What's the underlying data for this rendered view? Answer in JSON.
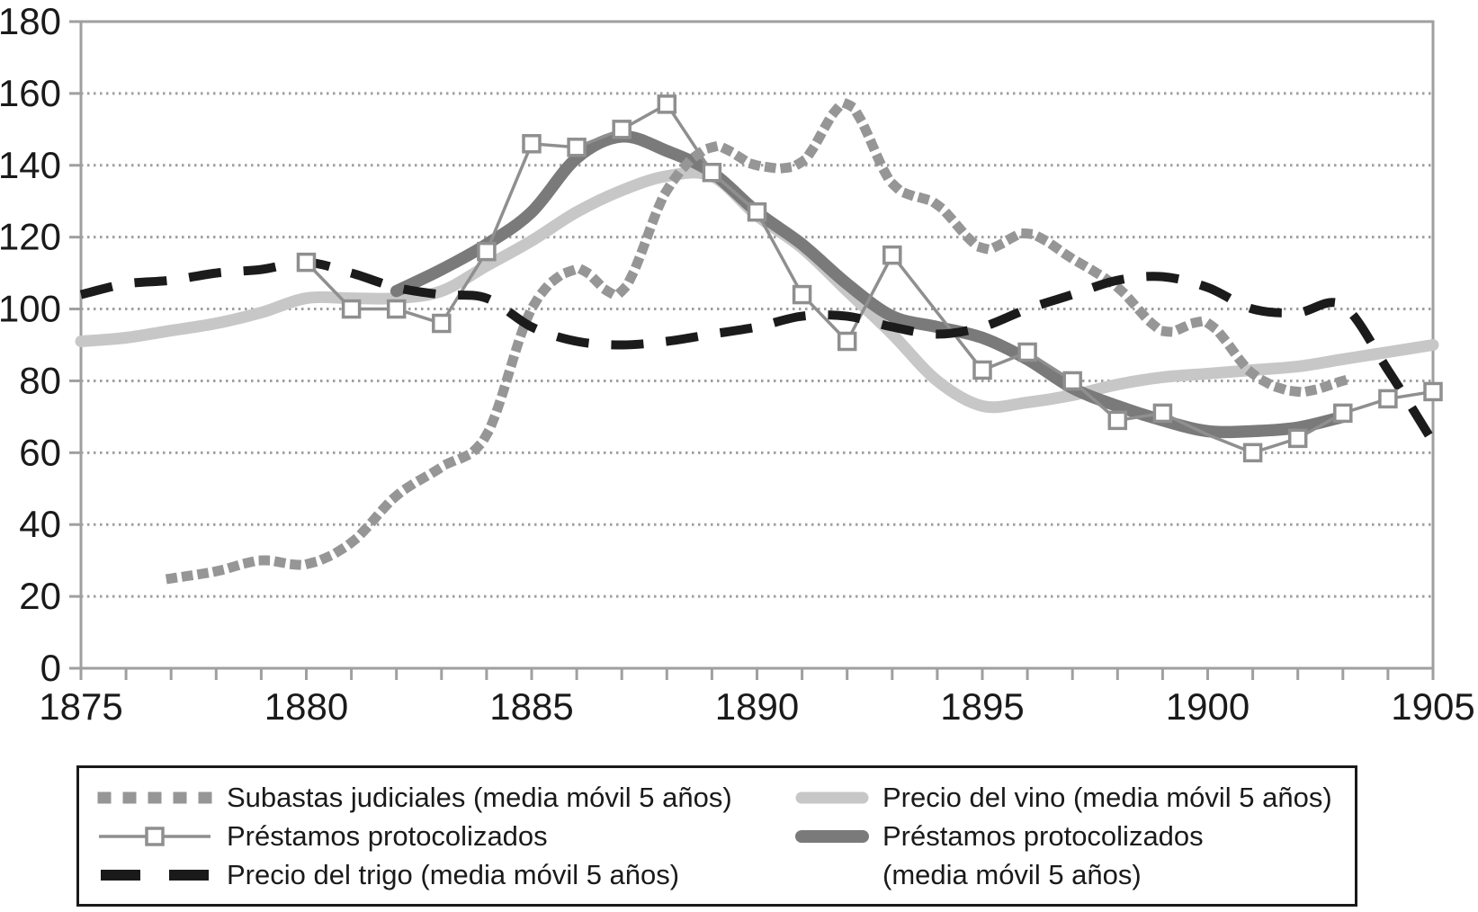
{
  "legend": {
    "left": [
      "Subastas judiciales (media móvil 5 años)",
      "Préstamos protocolizados",
      "Precio del trigo (media móvil 5 años)"
    ],
    "right": [
      "Precio del vino (media móvil 5 años)",
      "Préstamos protocolizados",
      "(media móvil 5 años)"
    ]
  },
  "chart_data": {
    "type": "line",
    "title": "",
    "xlabel": "",
    "ylabel": "",
    "grid": "horizontal-dotted",
    "legend_position": "bottom-box",
    "style": {
      "axis_color": "#9f9f9f",
      "grid_color": "#9f9f9f",
      "text_color": "#1a1a1a",
      "background": "#ffffff"
    },
    "x_axis": {
      "min": 1875,
      "max": 1905,
      "tick_step": 1,
      "label_step": 5,
      "labels": [
        "1875",
        "1880",
        "1885",
        "1890",
        "1895",
        "1900",
        "1905"
      ]
    },
    "y_axis": {
      "min": 0,
      "max": 180,
      "tick_step": 20,
      "labels": [
        "0",
        "20",
        "40",
        "60",
        "80",
        "100",
        "120",
        "140",
        "160",
        "180"
      ]
    },
    "series": [
      {
        "id": "vino_mm",
        "name": "Precio del vino (media móvil 5 años)",
        "color": "#c7c7c7",
        "line": "solid",
        "width": 13,
        "smooth": true,
        "markers": false,
        "points": [
          [
            1875,
            91
          ],
          [
            1876,
            92
          ],
          [
            1877,
            94
          ],
          [
            1878,
            96
          ],
          [
            1879,
            99
          ],
          [
            1880,
            103
          ],
          [
            1881,
            103
          ],
          [
            1882,
            103
          ],
          [
            1883,
            105
          ],
          [
            1884,
            112
          ],
          [
            1885,
            119
          ],
          [
            1886,
            127
          ],
          [
            1887,
            133
          ],
          [
            1888,
            137
          ],
          [
            1889,
            137
          ],
          [
            1890,
            126
          ],
          [
            1891,
            117
          ],
          [
            1892,
            105
          ],
          [
            1893,
            93
          ],
          [
            1894,
            80
          ],
          [
            1895,
            73
          ],
          [
            1896,
            74
          ],
          [
            1897,
            76
          ],
          [
            1898,
            79
          ],
          [
            1899,
            81
          ],
          [
            1900,
            82
          ],
          [
            1901,
            83
          ],
          [
            1902,
            84
          ],
          [
            1903,
            86
          ],
          [
            1904,
            88
          ],
          [
            1905,
            90
          ]
        ]
      },
      {
        "id": "prestamos_mm",
        "name": "Préstamos protocolizados (media móvil 5 años)",
        "color": "#7a7a7a",
        "line": "solid",
        "width": 13.5,
        "smooth": true,
        "markers": false,
        "points": [
          [
            1882,
            105
          ],
          [
            1883,
            111
          ],
          [
            1884,
            118
          ],
          [
            1885,
            127
          ],
          [
            1886,
            142
          ],
          [
            1887,
            148
          ],
          [
            1888,
            144
          ],
          [
            1889,
            138
          ],
          [
            1890,
            127
          ],
          [
            1891,
            118
          ],
          [
            1892,
            107
          ],
          [
            1893,
            98
          ],
          [
            1894,
            95
          ],
          [
            1895,
            92
          ],
          [
            1896,
            86
          ],
          [
            1897,
            78
          ],
          [
            1898,
            73
          ],
          [
            1899,
            69
          ],
          [
            1900,
            66
          ],
          [
            1901,
            66
          ],
          [
            1902,
            67
          ],
          [
            1903,
            70
          ]
        ]
      },
      {
        "id": "prestamos",
        "name": "Préstamos protocolizados",
        "color": "#8f8f8f",
        "line": "solid",
        "width": 3.5,
        "smooth": false,
        "markers": true,
        "marker_skip": [
          1894,
          1900
        ],
        "points": [
          [
            1880,
            113
          ],
          [
            1881,
            100
          ],
          [
            1882,
            100
          ],
          [
            1883,
            96
          ],
          [
            1884,
            116
          ],
          [
            1885,
            146
          ],
          [
            1886,
            145
          ],
          [
            1887,
            150
          ],
          [
            1888,
            157
          ],
          [
            1889,
            138
          ],
          [
            1890,
            127
          ],
          [
            1891,
            104
          ],
          [
            1892,
            91
          ],
          [
            1893,
            115
          ],
          [
            1894,
            99
          ],
          [
            1895,
            83
          ],
          [
            1896,
            88
          ],
          [
            1897,
            80
          ],
          [
            1898,
            69
          ],
          [
            1899,
            71
          ],
          [
            1900,
            65
          ],
          [
            1901,
            60
          ],
          [
            1902,
            64
          ],
          [
            1903,
            71
          ],
          [
            1904,
            75
          ],
          [
            1905,
            77
          ]
        ]
      },
      {
        "id": "subastas_mm",
        "name": "Subastas judiciales (media móvil 5 años)",
        "color": "#969696",
        "line": "dotted",
        "width": 11,
        "smooth": true,
        "markers": false,
        "points": [
          [
            1877,
            25
          ],
          [
            1878,
            27
          ],
          [
            1879,
            30
          ],
          [
            1880,
            29
          ],
          [
            1881,
            35
          ],
          [
            1882,
            48
          ],
          [
            1883,
            56
          ],
          [
            1884,
            65
          ],
          [
            1885,
            100
          ],
          [
            1886,
            111
          ],
          [
            1887,
            105
          ],
          [
            1888,
            133
          ],
          [
            1889,
            145
          ],
          [
            1890,
            140
          ],
          [
            1891,
            141
          ],
          [
            1892,
            157
          ],
          [
            1893,
            135
          ],
          [
            1894,
            129
          ],
          [
            1895,
            117
          ],
          [
            1896,
            121
          ],
          [
            1897,
            114
          ],
          [
            1898,
            106
          ],
          [
            1899,
            94
          ],
          [
            1900,
            96
          ],
          [
            1901,
            82
          ],
          [
            1902,
            77
          ],
          [
            1903,
            80
          ]
        ]
      },
      {
        "id": "trigo_mm",
        "name": "Precio del trigo (media móvil 5 años)",
        "color": "#1b1b1b",
        "line": "dashed",
        "width": 10,
        "smooth": true,
        "markers": false,
        "points": [
          [
            1875,
            104
          ],
          [
            1876,
            107
          ],
          [
            1877,
            108
          ],
          [
            1878,
            110
          ],
          [
            1879,
            111
          ],
          [
            1880,
            113
          ],
          [
            1881,
            110
          ],
          [
            1882,
            106
          ],
          [
            1883,
            104
          ],
          [
            1884,
            103
          ],
          [
            1885,
            95
          ],
          [
            1886,
            91
          ],
          [
            1887,
            90
          ],
          [
            1888,
            91
          ],
          [
            1889,
            93
          ],
          [
            1890,
            95
          ],
          [
            1891,
            98
          ],
          [
            1892,
            98
          ],
          [
            1893,
            95
          ],
          [
            1894,
            93
          ],
          [
            1895,
            95
          ],
          [
            1896,
            100
          ],
          [
            1897,
            104
          ],
          [
            1898,
            108
          ],
          [
            1899,
            109
          ],
          [
            1900,
            106
          ],
          [
            1901,
            100
          ],
          [
            1902,
            99
          ],
          [
            1903,
            101
          ],
          [
            1904,
            83
          ],
          [
            1905,
            63
          ]
        ]
      }
    ]
  }
}
